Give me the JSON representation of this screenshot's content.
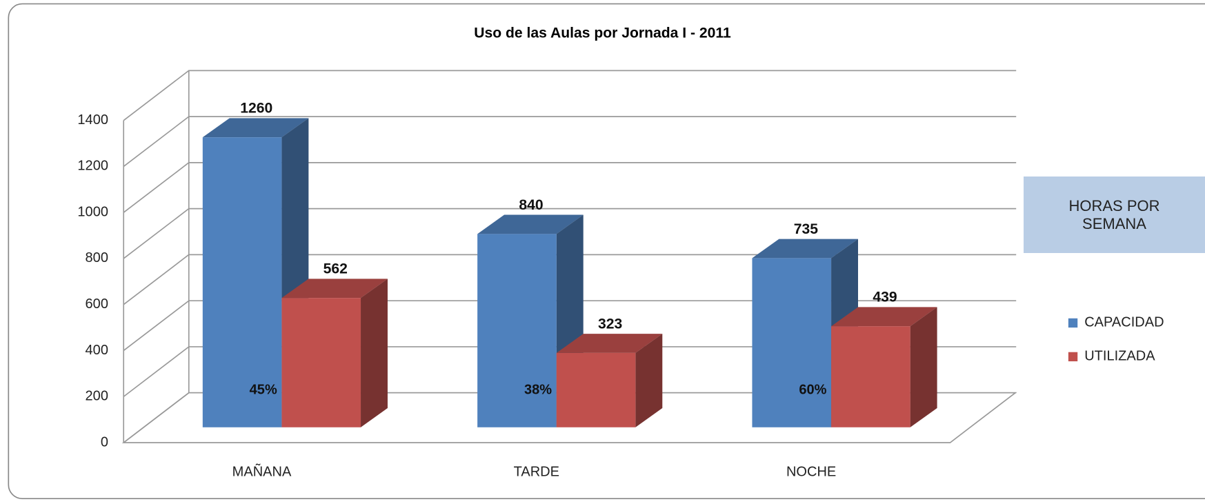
{
  "chart_data": {
    "type": "bar3d",
    "title": "Uso de las Aulas por Jornada I - 2011",
    "categories": [
      "MAÑANA",
      "TARDE",
      "NOCHE"
    ],
    "series": [
      {
        "name": "CAPACIDAD",
        "color": "#4f81bd",
        "values": [
          1260,
          840,
          735
        ]
      },
      {
        "name": "UTILIZADA",
        "color": "#c0504d",
        "values": [
          562,
          323,
          439
        ]
      }
    ],
    "annotations": [
      "45%",
      "38%",
      "60%"
    ],
    "legend_title": "HORAS POR SEMANA",
    "legend": "right",
    "ylim": [
      0,
      1400
    ],
    "yticks": [
      0,
      200,
      400,
      600,
      800,
      1000,
      1200,
      1400
    ],
    "grid": true
  }
}
